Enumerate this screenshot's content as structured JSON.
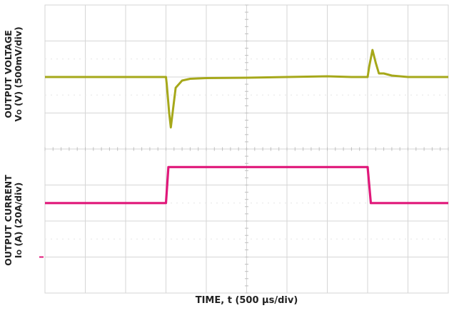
{
  "colors": {
    "voltage_trace": "#a6a81a",
    "current_trace": "#e0187a",
    "grid": "#d6d6d6",
    "background": "#ffffff",
    "text": "#222222"
  },
  "labels": {
    "y_upper_line1": "OUTPUT VOLTAGE",
    "y_upper_line2_main": "V",
    "y_upper_line2_sub": "O",
    "y_upper_line2_rest": " (V) (500mV/div)",
    "y_lower_line1": "OUTPUT  CURRENT",
    "y_lower_line2_main": "I",
    "y_lower_line2_sub": "O",
    "y_lower_line2_rest": " (A) (20A/div)",
    "x_axis": "TIME, t (500 µs/div)"
  },
  "chart_data": {
    "type": "line",
    "title": "",
    "xlabel": "TIME, t (500 µs/div)",
    "x_unit": "µs",
    "x_range": [
      0,
      5000
    ],
    "x_divisions": 10,
    "y_divisions": 8,
    "grid": true,
    "series": [
      {
        "name": "OUTPUT VOLTAGE",
        "ylabel": "VO (V) (500mV/div)",
        "scale_per_div": "500mV/div",
        "x": [
          0,
          1500,
          1510,
          1540,
          1560,
          1620,
          1700,
          1800,
          2000,
          2500,
          3000,
          3500,
          3800,
          4000,
          4020,
          4060,
          4100,
          4140,
          4200,
          4300,
          4500,
          5000
        ],
        "y_div": [
          6.0,
          6.0,
          5.8,
          5.0,
          4.6,
          5.7,
          5.9,
          5.95,
          5.97,
          5.98,
          6.0,
          6.02,
          6.0,
          6.0,
          6.3,
          6.75,
          6.4,
          6.1,
          6.1,
          6.04,
          6.0,
          6.0
        ]
      },
      {
        "name": "OUTPUT CURRENT",
        "ylabel": "IO (A) (20A/div)",
        "scale_per_div": "20A/div",
        "x": [
          0,
          1500,
          1530,
          4000,
          4040,
          5000
        ],
        "y_div": [
          2.5,
          2.5,
          3.5,
          3.5,
          2.5,
          2.5
        ]
      }
    ],
    "current_ground_marker_div": 1.0
  }
}
